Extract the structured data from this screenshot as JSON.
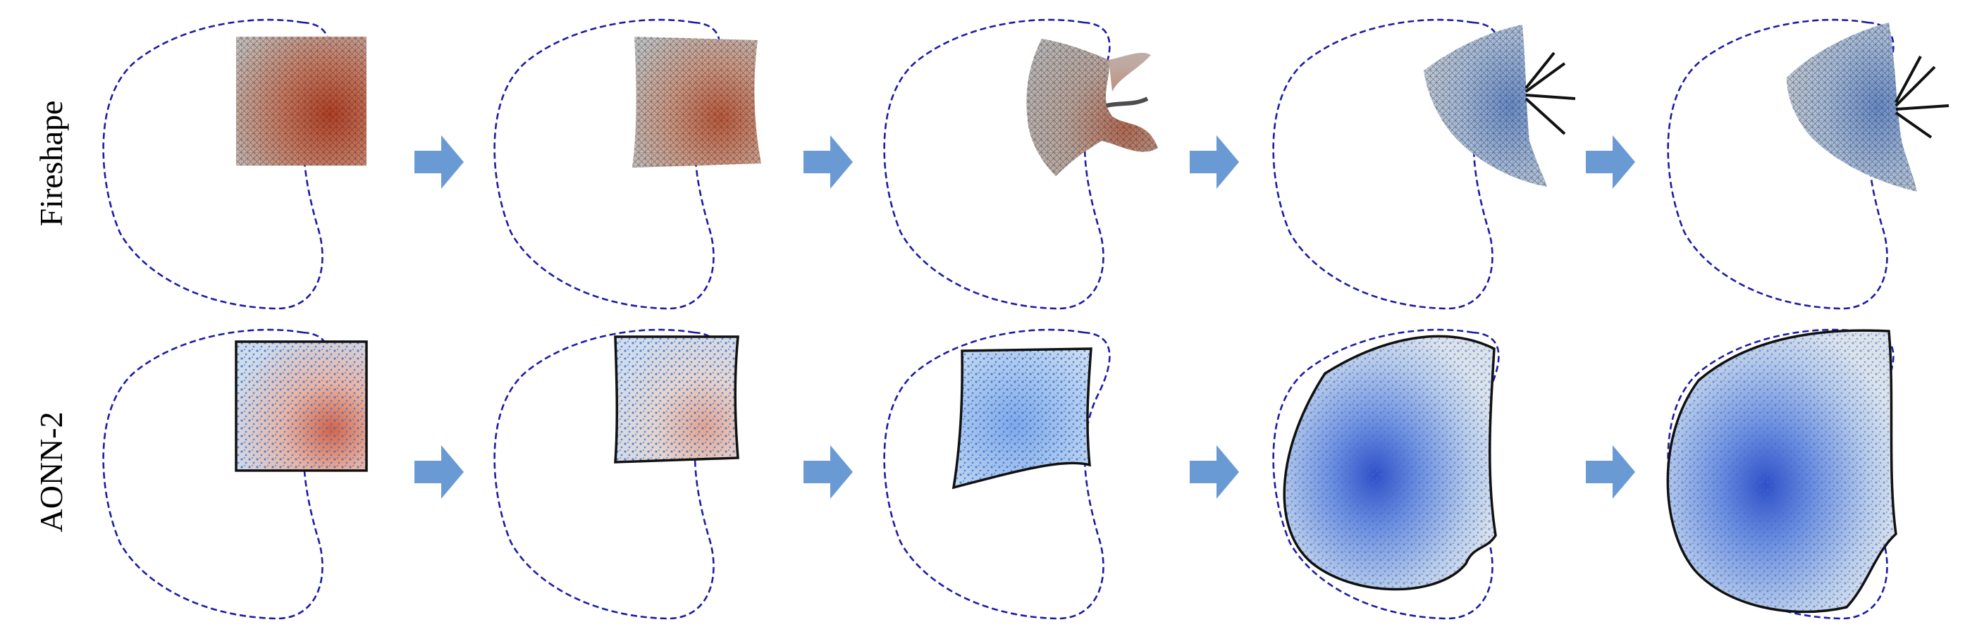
{
  "rows": [
    {
      "label": "Fireshape",
      "method": "mesh",
      "stages": [
        "initial-square",
        "slightly-deformed",
        "pinched",
        "collapsed",
        "collapsed-final"
      ]
    },
    {
      "label": "AONN-2",
      "method": "point-cloud",
      "stages": [
        "initial-square",
        "slightly-deformed",
        "shrunk",
        "near-target",
        "matched-target"
      ]
    }
  ],
  "colors": {
    "target_contour": "#1c1ca8",
    "arrow": "#6a9ad4",
    "mesh_fill": "#b4b4b4",
    "mesh_edge": "#262626",
    "heat_warm": "#c0482c",
    "heat_cool": "#3c5ed2",
    "domain_fill": "#dfe6ef",
    "particle": "#3a6ec4",
    "outline": "#111111"
  },
  "icons": {
    "transition_arrow": "right-block-arrow-icon"
  }
}
